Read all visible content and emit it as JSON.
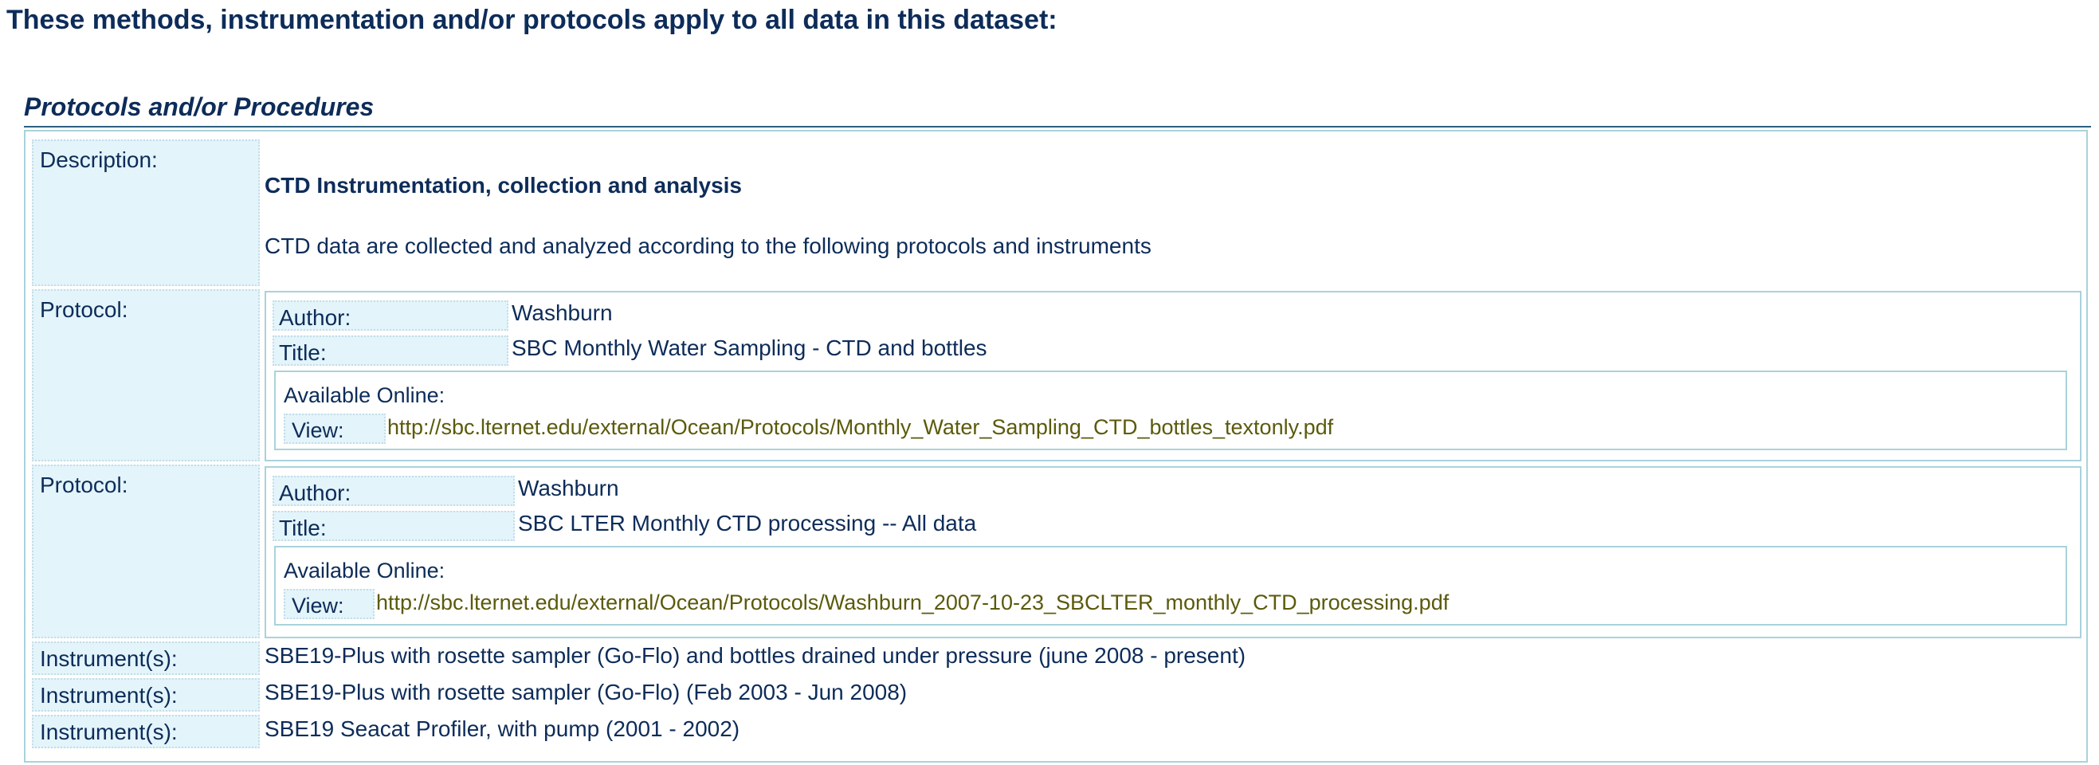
{
  "page_heading": "These methods, instrumentation and/or protocols apply to all data in this dataset:",
  "section_heading": "Protocols and/or Procedures",
  "description": {
    "label": "Description:",
    "title": "CTD Instrumentation, collection and analysis",
    "text": "CTD data are collected and analyzed according to the following protocols and instruments"
  },
  "protocols": [
    {
      "label": "Protocol:",
      "author_label": "Author:",
      "author": "Washburn",
      "title_label": "Title:",
      "title": "SBC Monthly Water Sampling - CTD and bottles",
      "online_label": "Available Online:",
      "view_label": "View:",
      "url": "http://sbc.lternet.edu/external/Ocean/Protocols/Monthly_Water_Sampling_CTD_bottles_textonly.pdf"
    },
    {
      "label": "Protocol:",
      "author_label": "Author:",
      "author": "Washburn",
      "title_label": "Title:",
      "title": "SBC LTER Monthly CTD processing -- All data",
      "online_label": "Available Online:",
      "view_label": "View:",
      "url": "http://sbc.lternet.edu/external/Ocean/Protocols/Washburn_2007-10-23_SBCLTER_monthly_CTD_processing.pdf"
    }
  ],
  "instruments": [
    {
      "label": "Instrument(s):",
      "value": "SBE19-Plus with rosette sampler (Go-Flo) and bottles drained under pressure (june 2008 - present)"
    },
    {
      "label": "Instrument(s):",
      "value": "SBE19-Plus with rosette sampler (Go-Flo) (Feb 2003 - Jun 2008)"
    },
    {
      "label": "Instrument(s):",
      "value": "SBE19 Seacat Profiler, with pump (2001 - 2002)"
    }
  ]
}
